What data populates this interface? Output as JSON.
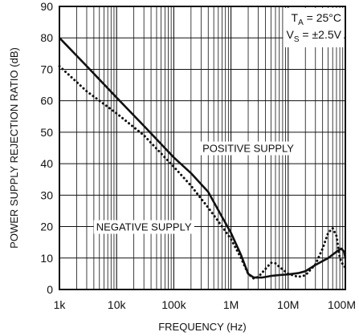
{
  "chart_data": {
    "type": "line",
    "xlabel": "FREQUENCY (Hz)",
    "ylabel": "POWER SUPPLY REJECTION RATIO (dB)",
    "xscale": "log",
    "xlim": [
      1000,
      100000000
    ],
    "ylim": [
      0,
      90
    ],
    "grid": true,
    "x_ticks": [
      1000,
      10000,
      100000,
      1000000,
      10000000,
      100000000
    ],
    "x_tick_labels": [
      "1k",
      "10k",
      "100k",
      "1M",
      "10M",
      "100M"
    ],
    "y_ticks": [
      0,
      10,
      20,
      30,
      40,
      50,
      60,
      70,
      80,
      90
    ],
    "y_tick_labels": [
      "0",
      "10",
      "20",
      "30",
      "40",
      "50",
      "60",
      "70",
      "80",
      "90"
    ],
    "conditions": {
      "ta_main": "T",
      "ta_sub": "A",
      "ta_rest": " = 25°C",
      "vs_main": "V",
      "vs_sub": "S",
      "vs_rest": " = ±2.5V"
    },
    "series": [
      {
        "name": "POSITIVE SUPPLY",
        "style": "solid",
        "color": "#111111",
        "points": [
          [
            1000,
            80
          ],
          [
            3000,
            71
          ],
          [
            10000,
            61
          ],
          [
            30000,
            52
          ],
          [
            100000,
            42
          ],
          [
            200000,
            37
          ],
          [
            400000,
            31
          ],
          [
            700000,
            23
          ],
          [
            1000000,
            18
          ],
          [
            1500000,
            11
          ],
          [
            2000000,
            5
          ],
          [
            2500000,
            3.8
          ],
          [
            3500000,
            3.8
          ],
          [
            5000000,
            4.3
          ],
          [
            7000000,
            4.6
          ],
          [
            10000000,
            4.8
          ],
          [
            15000000,
            5.2
          ],
          [
            20000000,
            5.8
          ],
          [
            30000000,
            7.8
          ],
          [
            50000000,
            10
          ],
          [
            70000000,
            12
          ],
          [
            85000000,
            13
          ],
          [
            95000000,
            12
          ],
          [
            100000000,
            10
          ]
        ]
      },
      {
        "name": "NEGATIVE SUPPLY",
        "style": "dotted",
        "color": "#111111",
        "points": [
          [
            1000,
            71
          ],
          [
            3000,
            63
          ],
          [
            10000,
            56
          ],
          [
            30000,
            49
          ],
          [
            100000,
            39
          ],
          [
            200000,
            33
          ],
          [
            400000,
            26
          ],
          [
            700000,
            20
          ],
          [
            1000000,
            16
          ],
          [
            1500000,
            10
          ],
          [
            2000000,
            5
          ],
          [
            2500000,
            3.5
          ],
          [
            3000000,
            4
          ],
          [
            4000000,
            6.5
          ],
          [
            5000000,
            8.5
          ],
          [
            6000000,
            8.3
          ],
          [
            7000000,
            7.2
          ],
          [
            10000000,
            5
          ],
          [
            15000000,
            4
          ],
          [
            20000000,
            4.5
          ],
          [
            30000000,
            8
          ],
          [
            40000000,
            13
          ],
          [
            50000000,
            18
          ],
          [
            60000000,
            19.5
          ],
          [
            70000000,
            17
          ],
          [
            80000000,
            10
          ],
          [
            90000000,
            8
          ],
          [
            100000000,
            7
          ]
        ]
      }
    ],
    "series_label_positions": [
      {
        "series": 0,
        "x": 2000000,
        "y": 45
      },
      {
        "series": 1,
        "x": 30000,
        "y": 20
      }
    ]
  }
}
